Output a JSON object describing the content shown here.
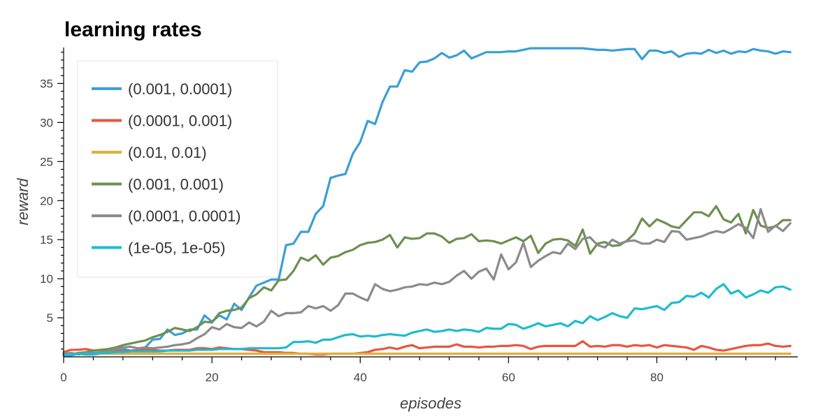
{
  "chart_data": {
    "type": "line",
    "title": "learning rates",
    "xlabel": "episodes",
    "ylabel": "reward",
    "xlim": [
      0,
      99
    ],
    "ylim": [
      0,
      39.6
    ],
    "x_ticks": [
      0,
      20,
      40,
      60,
      80
    ],
    "y_ticks": [
      5,
      10,
      15,
      20,
      25,
      30,
      35
    ],
    "grid": false,
    "legend_position": "top-left",
    "series": [
      {
        "name": "(0.001, 0.0001)",
        "color": "#3a9fd6",
        "values": [
          0.2,
          0.2,
          0.4,
          0.3,
          0.3,
          0.4,
          0.5,
          0.8,
          1.0,
          0.8,
          0.9,
          1.2,
          2.2,
          2.3,
          3.5,
          2.8,
          3.0,
          3.5,
          3.5,
          5.3,
          4.5,
          5.3,
          4.8,
          6.8,
          6.0,
          7.6,
          9.1,
          9.5,
          9.9,
          9.9,
          14.3,
          14.5,
          16.0,
          16.0,
          18.3,
          19.3,
          22.9,
          23.2,
          23.4,
          26.0,
          27.5,
          30.2,
          29.8,
          32.6,
          34.6,
          34.6,
          36.7,
          36.5,
          37.7,
          37.8,
          38.2,
          38.9,
          38.3,
          38.6,
          39.2,
          38.2,
          38.6,
          39.0,
          39.0,
          39.0,
          39.1,
          39.1,
          39.3,
          39.5,
          39.5,
          39.5,
          39.5,
          39.5,
          39.5,
          39.5,
          39.5,
          39.4,
          39.3,
          39.3,
          39.2,
          39.3,
          39.4,
          39.4,
          38.1,
          39.2,
          39.2,
          38.9,
          39.1,
          38.4,
          38.8,
          38.9,
          38.8,
          39.3,
          38.9,
          39.2,
          38.8,
          39.1,
          39.0,
          39.4,
          39.2,
          39.1,
          38.8,
          39.1,
          39.0
        ]
      },
      {
        "name": "(0.0001, 0.001)",
        "color": "#e9553d",
        "values": [
          0.6,
          0.9,
          0.9,
          1.0,
          0.8,
          0.9,
          0.7,
          0.8,
          0.7,
          0.8,
          0.8,
          0.9,
          0.9,
          0.8,
          0.8,
          0.9,
          0.9,
          0.9,
          1.1,
          1.1,
          1.0,
          1.2,
          1.1,
          1.0,
          1.0,
          0.9,
          0.8,
          0.6,
          0.6,
          0.6,
          0.5,
          0.5,
          0.4,
          0.4,
          0.3,
          0.3,
          0.4,
          0.4,
          0.4,
          0.4,
          0.5,
          0.6,
          0.9,
          1.0,
          1.2,
          1.0,
          1.3,
          1.5,
          1.1,
          1.2,
          1.3,
          1.3,
          1.3,
          1.6,
          1.3,
          1.3,
          1.2,
          1.3,
          1.3,
          1.4,
          1.4,
          1.5,
          1.4,
          1.0,
          1.3,
          1.4,
          1.4,
          1.4,
          1.4,
          1.4,
          2.0,
          1.3,
          1.4,
          1.3,
          1.5,
          1.5,
          1.3,
          1.5,
          1.4,
          1.5,
          1.2,
          1.5,
          1.4,
          1.3,
          1.2,
          0.9,
          1.4,
          1.2,
          0.9,
          0.8,
          1.0,
          1.2,
          1.4,
          1.5,
          1.5,
          1.7,
          1.4,
          1.3,
          1.4
        ]
      },
      {
        "name": "(0.01, 0.01)",
        "color": "#e5ae38",
        "values": [
          0.4,
          0.4,
          0.4,
          0.4,
          0.4,
          0.4,
          0.4,
          0.4,
          0.4,
          0.4,
          0.4,
          0.4,
          0.4,
          0.4,
          0.4,
          0.4,
          0.4,
          0.4,
          0.4,
          0.4,
          0.4,
          0.4,
          0.4,
          0.4,
          0.4,
          0.4,
          0.4,
          0.4,
          0.4,
          0.4,
          0.4,
          0.4,
          0.4,
          0.4,
          0.4,
          0.4,
          0.4,
          0.4,
          0.4,
          0.4,
          0.4,
          0.4,
          0.4,
          0.4,
          0.4,
          0.4,
          0.4,
          0.4,
          0.4,
          0.4,
          0.4,
          0.4,
          0.4,
          0.4,
          0.4,
          0.4,
          0.4,
          0.4,
          0.4,
          0.4,
          0.4,
          0.4,
          0.4,
          0.4,
          0.4,
          0.4,
          0.4,
          0.4,
          0.4,
          0.4,
          0.4,
          0.4,
          0.4,
          0.4,
          0.4,
          0.4,
          0.4,
          0.4,
          0.4,
          0.4,
          0.4,
          0.4,
          0.4,
          0.4,
          0.4,
          0.4,
          0.4,
          0.4,
          0.4,
          0.4,
          0.4,
          0.4,
          0.4,
          0.4,
          0.4,
          0.4,
          0.4,
          0.4,
          0.4
        ]
      },
      {
        "name": "(0.001, 0.001)",
        "color": "#6d904f",
        "values": [
          0.4,
          0.3,
          0.5,
          0.6,
          0.8,
          0.9,
          1.0,
          1.2,
          1.5,
          1.7,
          1.9,
          2.1,
          2.5,
          2.8,
          3.2,
          3.7,
          3.5,
          3.3,
          3.8,
          4.5,
          4.4,
          5.6,
          5.9,
          6.0,
          6.3,
          7.5,
          8.0,
          8.9,
          8.5,
          9.8,
          9.9,
          11.0,
          12.7,
          12.3,
          13.0,
          11.8,
          12.7,
          12.9,
          13.4,
          13.7,
          14.3,
          14.6,
          14.7,
          15.0,
          15.6,
          14.0,
          15.3,
          15.1,
          15.2,
          15.8,
          15.8,
          15.4,
          14.6,
          15.1,
          15.2,
          15.7,
          14.8,
          14.9,
          14.8,
          14.5,
          14.9,
          15.3,
          14.8,
          15.5,
          13.3,
          14.5,
          15.0,
          15.1,
          14.9,
          14.2,
          16.3,
          13.2,
          14.5,
          14.7,
          14.2,
          14.3,
          14.9,
          15.8,
          17.7,
          16.7,
          17.6,
          17.2,
          16.7,
          16.5,
          17.5,
          18.5,
          18.5,
          18.0,
          19.3,
          17.6,
          17.2,
          18.3,
          15.8,
          18.8,
          16.8,
          16.5,
          16.7,
          17.5,
          17.5
        ]
      },
      {
        "name": "(0.0001, 0.0001)",
        "color": "#8b8b8b",
        "values": [
          0.4,
          0.5,
          0.3,
          0.5,
          0.5,
          0.6,
          0.7,
          1.0,
          1.2,
          1.3,
          1.1,
          1.2,
          1.1,
          1.2,
          1.3,
          1.5,
          1.6,
          1.8,
          2.4,
          2.9,
          3.8,
          3.5,
          4.2,
          3.8,
          3.7,
          4.4,
          3.9,
          4.5,
          5.9,
          5.2,
          5.6,
          5.6,
          5.7,
          6.5,
          6.2,
          6.5,
          5.9,
          6.6,
          8.1,
          8.1,
          7.6,
          7.2,
          9.3,
          8.7,
          8.4,
          8.6,
          8.9,
          9.0,
          9.3,
          9.2,
          9.5,
          9.3,
          9.6,
          10.4,
          11.0,
          10.0,
          10.9,
          11.3,
          9.9,
          13.1,
          11.2,
          12.1,
          14.6,
          11.5,
          12.3,
          12.9,
          13.4,
          13.2,
          14.5,
          13.8,
          15.1,
          15.3,
          14.3,
          14.0,
          15.0,
          14.5,
          14.8,
          14.9,
          14.5,
          14.5,
          15.0,
          14.7,
          16.1,
          16.0,
          15.0,
          15.2,
          15.4,
          15.8,
          16.1,
          15.9,
          16.4,
          17.0,
          16.5,
          15.2,
          18.9,
          16.0,
          16.8,
          16.1,
          17.1
        ]
      },
      {
        "name": "(1e-05, 1e-05)",
        "color": "#1cbccf",
        "values": [
          0.3,
          0.3,
          0.4,
          0.4,
          0.4,
          0.5,
          0.5,
          0.6,
          0.6,
          0.7,
          0.7,
          0.7,
          0.7,
          0.7,
          0.8,
          0.8,
          0.8,
          0.8,
          0.9,
          0.9,
          0.9,
          1.0,
          1.0,
          1.0,
          1.0,
          1.1,
          1.1,
          1.1,
          1.1,
          1.1,
          1.2,
          1.9,
          1.9,
          2.0,
          1.8,
          2.2,
          2.2,
          2.5,
          2.8,
          2.9,
          2.6,
          2.7,
          2.6,
          2.8,
          2.9,
          2.8,
          2.7,
          3.1,
          3.3,
          3.5,
          3.2,
          3.3,
          3.5,
          3.3,
          3.5,
          3.4,
          3.2,
          3.7,
          3.6,
          3.6,
          4.2,
          4.1,
          3.6,
          3.9,
          4.3,
          3.9,
          4.1,
          4.3,
          3.9,
          4.6,
          4.3,
          5.2,
          4.7,
          5.1,
          5.6,
          5.2,
          5.0,
          6.2,
          6.1,
          6.3,
          6.5,
          6.0,
          6.9,
          7.0,
          7.8,
          7.7,
          8.2,
          7.6,
          8.7,
          9.3,
          8.1,
          8.5,
          7.6,
          8.0,
          8.5,
          8.2,
          8.9,
          9.0,
          8.6
        ]
      }
    ]
  }
}
